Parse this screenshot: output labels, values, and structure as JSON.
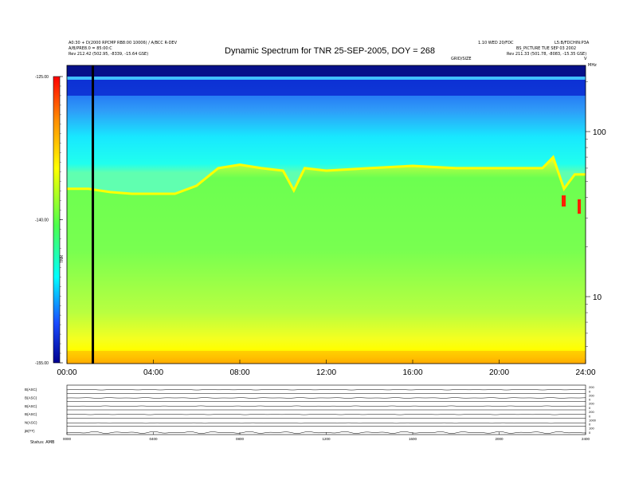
{
  "header": {
    "left_line1": "A0:30 + D(2000 RPCMP RB8:00 10006) / A/BCC R-DEV",
    "left_line2": "A/B/PRE8.0 = 85:00:C",
    "left_line3": "Rev    212.42 (502.95, -8339, -15.64 GSE)",
    "right_line1a": "1.10 WED 20/FDC",
    "right_line1b": "L5:B/FDCHIN:P3A",
    "right_line2": "BS_PICTURE TUE SEP 03 2002",
    "right_line3": "Rev    211.33 (501.78, -8083, -15.35 GSE)",
    "center_small": "GRID/SIZE",
    "corner_right": "MHz",
    "corner_v": "V",
    "title": "Dynamic Spectrum for TNR 25-SEP-2005, DOY = 268"
  },
  "chart_data": {
    "type": "heatmap",
    "title": "Dynamic Spectrum for TNR 25-SEP-2005, DOY = 268",
    "colorbar_label": "TNR",
    "colorbar_ticks": [
      "-125.00",
      "-140.00",
      "-155.00"
    ],
    "colorbar_range": [
      -155,
      -125
    ],
    "x_ticks": [
      "00:00",
      "04:00",
      "08:00",
      "12:00",
      "16:00",
      "20:00",
      "24:00"
    ],
    "x_range_hours": [
      0,
      24
    ],
    "y_ticks": [
      "100",
      "10"
    ],
    "y_scale": "log",
    "data_gap_hour": 1.2,
    "emission_edge_khz": [
      [
        0,
        45
      ],
      [
        1,
        45
      ],
      [
        2,
        43
      ],
      [
        3,
        42
      ],
      [
        4,
        42
      ],
      [
        5,
        42
      ],
      [
        6,
        47
      ],
      [
        7,
        60
      ],
      [
        8,
        63
      ],
      [
        9,
        60
      ],
      [
        10,
        58
      ],
      [
        10.5,
        44
      ],
      [
        11,
        60
      ],
      [
        12,
        58
      ],
      [
        14,
        60
      ],
      [
        16,
        62
      ],
      [
        18,
        60
      ],
      [
        20,
        60
      ],
      [
        22,
        60
      ],
      [
        22.5,
        70
      ],
      [
        23,
        45
      ],
      [
        23.5,
        55
      ],
      [
        24,
        55
      ]
    ]
  },
  "panels": {
    "labels": [
      "B(ASC)",
      "B(ASC)",
      "B(ASC)",
      "B(ASC)",
      "N(ASC)",
      "jB(TT)"
    ],
    "right_ticks": [
      [
        "200",
        "0"
      ],
      [
        "200",
        "0"
      ],
      [
        "200",
        "0"
      ],
      [
        "200",
        "0"
      ],
      [
        "1000",
        "0"
      ],
      [
        "100",
        "0"
      ]
    ],
    "x_ticks": [
      "0000",
      "0400",
      "0800",
      "1200",
      "1600",
      "2000",
      "2400"
    ],
    "footer": "Status:    AMB"
  },
  "colors": {
    "dark_blue": "#000090",
    "blue": "#1a4cff",
    "cyan": "#00ffff",
    "green": "#4cff4c",
    "yellow": "#ffff00",
    "orange": "#ff8c00",
    "red": "#ff0000"
  }
}
